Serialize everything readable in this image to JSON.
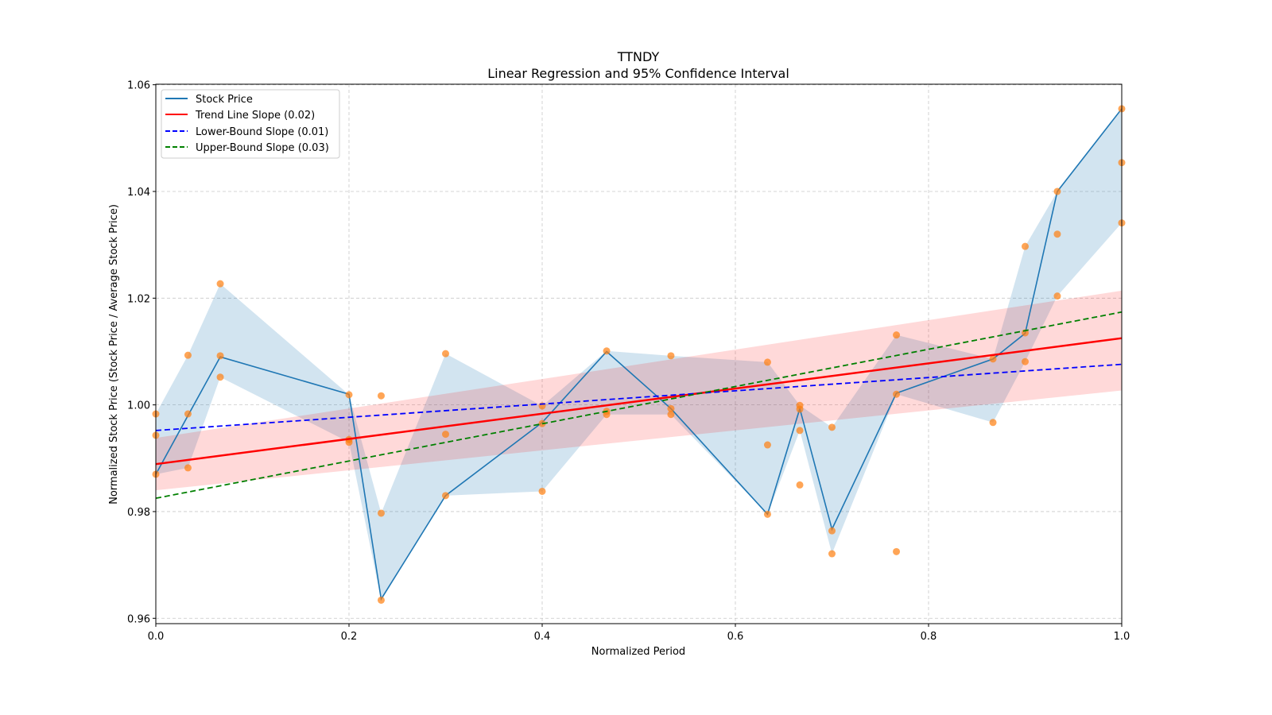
{
  "chart_data": {
    "type": "line",
    "title": "TTNDY",
    "subtitle": "Linear Regression and 95% Confidence Interval",
    "xlabel": "Normalized Period",
    "ylabel": "Normalized Stock Price (Stock Price / Average Stock Price)",
    "xlim": [
      0.0,
      1.0
    ],
    "ylim": [
      0.959,
      1.0601
    ],
    "xticks": [
      0.0,
      0.2,
      0.4,
      0.6,
      0.8,
      1.0
    ],
    "xtick_labels": [
      "0.0",
      "0.2",
      "0.4",
      "0.6",
      "0.8",
      "1.0"
    ],
    "yticks": [
      0.96,
      0.98,
      1.0,
      1.02,
      1.04,
      1.06
    ],
    "ytick_labels": [
      "0.96",
      "0.98",
      "1.00",
      "1.02",
      "1.04",
      "1.06"
    ],
    "grid": true,
    "legend_position": "top-left",
    "legend": [
      {
        "label": "Stock Price",
        "color": "#1f77b4",
        "style": "solid"
      },
      {
        "label": "Trend Line Slope (0.02)",
        "color": "#ff0000",
        "style": "solid"
      },
      {
        "label": "Lower-Bound Slope (0.01)",
        "color": "#0000ff",
        "style": "dashed"
      },
      {
        "label": "Upper-Bound Slope (0.03)",
        "color": "#008000",
        "style": "dashed"
      }
    ],
    "stock_price": {
      "x": [
        0.0,
        0.0333,
        0.0667,
        0.2,
        0.2333,
        0.3,
        0.4,
        0.4667,
        0.5333,
        0.6333,
        0.6667,
        0.7,
        0.7667,
        0.8667,
        0.9,
        0.9333,
        1.0
      ],
      "y": [
        0.987,
        0.998,
        1.009,
        1.002,
        0.9636,
        0.983,
        0.9967,
        1.01,
        0.9993,
        0.9795,
        0.9993,
        0.9767,
        1.0022,
        1.0086,
        1.0134,
        1.04,
        1.0555
      ],
      "band_upper": [
        0.9983,
        1.0093,
        1.0227,
        1.0019,
        0.9797,
        1.0096,
        0.9998,
        1.0101,
        1.0092,
        1.008,
        0.9999,
        0.9958,
        1.0131,
        1.0086,
        1.0297,
        1.04,
        1.0555
      ],
      "band_lower": [
        0.987,
        0.9882,
        1.0052,
        0.993,
        0.9634,
        0.983,
        0.9838,
        0.9982,
        0.9982,
        0.9795,
        0.9952,
        0.9721,
        1.002,
        0.9967,
        1.0081,
        1.0204,
        1.0341
      ]
    },
    "scatter": {
      "color": "#ff7f0e",
      "points": [
        [
          0.0,
          0.9983
        ],
        [
          0.0,
          0.9943
        ],
        [
          0.0,
          0.987
        ],
        [
          0.0333,
          1.0093
        ],
        [
          0.0333,
          0.9983
        ],
        [
          0.0333,
          0.9882
        ],
        [
          0.0667,
          1.0227
        ],
        [
          0.0667,
          1.0092
        ],
        [
          0.0667,
          1.0052
        ],
        [
          0.2,
          1.0019
        ],
        [
          0.2,
          0.993
        ],
        [
          0.2,
          0.9935
        ],
        [
          0.2333,
          1.0017
        ],
        [
          0.2333,
          0.9797
        ],
        [
          0.2333,
          0.9634
        ],
        [
          0.3,
          1.0096
        ],
        [
          0.3,
          0.9945
        ],
        [
          0.3,
          0.983
        ],
        [
          0.4,
          0.9998
        ],
        [
          0.4,
          0.9965
        ],
        [
          0.4,
          0.9838
        ],
        [
          0.4667,
          1.0101
        ],
        [
          0.4667,
          0.9988
        ],
        [
          0.4667,
          0.9982
        ],
        [
          0.5333,
          1.0092
        ],
        [
          0.5333,
          0.9993
        ],
        [
          0.5333,
          0.9982
        ],
        [
          0.6333,
          1.008
        ],
        [
          0.6333,
          0.9925
        ],
        [
          0.6333,
          0.9795
        ],
        [
          0.6667,
          0.9999
        ],
        [
          0.6667,
          0.9992
        ],
        [
          0.6667,
          0.9952
        ],
        [
          0.6667,
          0.985
        ],
        [
          0.7,
          0.9958
        ],
        [
          0.7,
          0.9764
        ],
        [
          0.7,
          0.9721
        ],
        [
          0.7667,
          1.0131
        ],
        [
          0.7667,
          1.002
        ],
        [
          0.7667,
          0.9725
        ],
        [
          0.8667,
          1.0086
        ],
        [
          0.8667,
          0.9967
        ],
        [
          0.9,
          1.0297
        ],
        [
          0.9,
          1.0135
        ],
        [
          0.9,
          1.0081
        ],
        [
          0.9333,
          1.04
        ],
        [
          0.9333,
          1.032
        ],
        [
          0.9333,
          1.0204
        ],
        [
          1.0,
          1.0555
        ],
        [
          1.0,
          1.0454
        ],
        [
          1.0,
          1.0341
        ]
      ]
    },
    "trend_line": {
      "x": [
        0.0,
        1.0
      ],
      "y": [
        0.9889,
        1.0125
      ],
      "ci_lower": [
        0.984,
        1.0027
      ],
      "ci_upper": [
        0.9938,
        1.0214
      ],
      "color": "#ff0000"
    },
    "lower_bound_line": {
      "x": [
        0.0,
        1.0
      ],
      "y": [
        0.9952,
        1.0076
      ],
      "color": "#0000ff"
    },
    "upper_bound_line": {
      "x": [
        0.0,
        1.0
      ],
      "y": [
        0.9825,
        1.0174
      ],
      "color": "#008000"
    }
  }
}
